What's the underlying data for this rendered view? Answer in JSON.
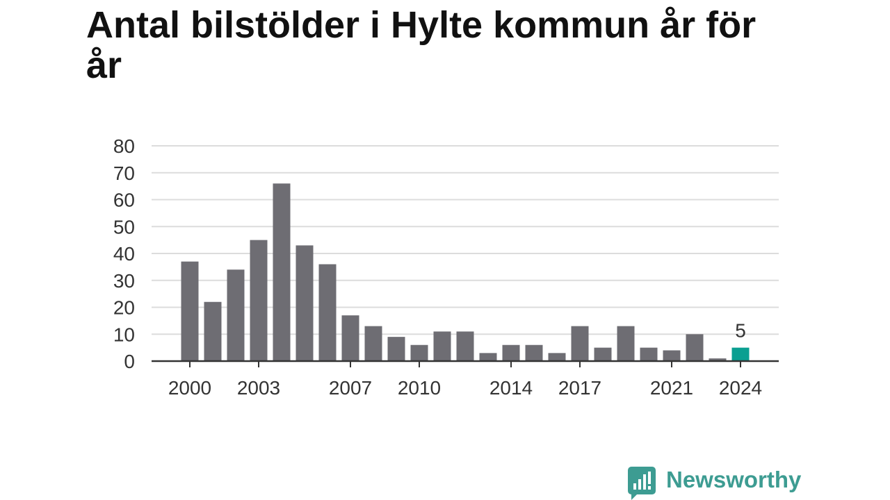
{
  "chart_data": {
    "type": "bar",
    "title": "Antal bilstölder i Hylte kommun år för år",
    "xlabel": "",
    "ylabel": "",
    "x": [
      2000,
      2001,
      2002,
      2003,
      2004,
      2005,
      2006,
      2007,
      2008,
      2009,
      2010,
      2011,
      2012,
      2013,
      2014,
      2015,
      2016,
      2017,
      2018,
      2019,
      2020,
      2021,
      2022,
      2023,
      2024
    ],
    "values": [
      37,
      22,
      34,
      45,
      66,
      43,
      36,
      17,
      13,
      9,
      6,
      11,
      11,
      3,
      6,
      6,
      3,
      13,
      5,
      13,
      5,
      4,
      10,
      1,
      5
    ],
    "x_tick_labels": [
      "2000",
      "2003",
      "2007",
      "2010",
      "2014",
      "2017",
      "2021",
      "2024"
    ],
    "y_ticks": [
      0,
      10,
      20,
      30,
      40,
      50,
      60,
      70,
      80
    ],
    "ylim": [
      0,
      80
    ],
    "grid": true,
    "highlight": {
      "x": 2024,
      "label": "5"
    },
    "colors": {
      "bar": "#6e6d73",
      "highlight": "#0a9f91",
      "grid": "#dcdcdc",
      "axis": "#333333"
    }
  },
  "logo": {
    "text": "Newsworthy",
    "icon": "newsworthy-chart-bubble-icon",
    "color": "#3d9c92"
  }
}
